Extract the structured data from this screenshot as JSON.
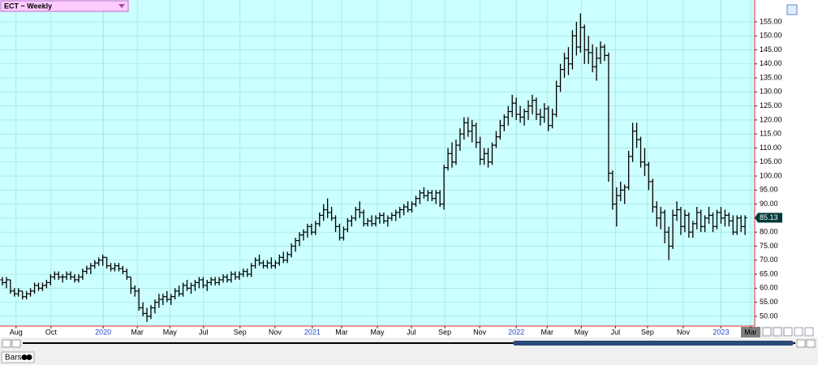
{
  "chart_data": {
    "type": "ohlc",
    "title": "ECT ~ Weekly",
    "toolbar_label": "Bars",
    "color": "#000000",
    "grid": true,
    "last_price": 85.13,
    "xlim": [
      -0.6,
      187.4
    ],
    "ylim": [
      46.5,
      162.2
    ],
    "xticks": [
      {
        "value": 3.4,
        "label": "Aug"
      },
      {
        "value": 12.1,
        "label": "Oct"
      },
      {
        "value": 25.1,
        "label": "2020"
      },
      {
        "value": 33.6,
        "label": "Mar"
      },
      {
        "value": 41.7,
        "label": "May"
      },
      {
        "value": 50.1,
        "label": "Jul"
      },
      {
        "value": 59.2,
        "label": "Sep"
      },
      {
        "value": 67.9,
        "label": "Nov"
      },
      {
        "value": 77.2,
        "label": "2021"
      },
      {
        "value": 84.5,
        "label": "Mar"
      },
      {
        "value": 93.4,
        "label": "May"
      },
      {
        "value": 101.9,
        "label": "Jul"
      },
      {
        "value": 110.2,
        "label": "Sep"
      },
      {
        "value": 118.9,
        "label": "Nov"
      },
      {
        "value": 128,
        "label": "2022"
      },
      {
        "value": 135.7,
        "label": "Mar"
      },
      {
        "value": 144.2,
        "label": "May"
      },
      {
        "value": 152.7,
        "label": "Jul"
      },
      {
        "value": 160.7,
        "label": "Sep"
      },
      {
        "value": 169.6,
        "label": "Nov"
      },
      {
        "value": 179,
        "label": "2023"
      },
      {
        "value": 186.4,
        "label": "Mar"
      }
    ],
    "yticks": [
      {
        "value": 50,
        "label": "50.00"
      },
      {
        "value": 55,
        "label": "55.00"
      },
      {
        "value": 60,
        "label": "60.00"
      },
      {
        "value": 65,
        "label": "65.00"
      },
      {
        "value": 70,
        "label": "70.00"
      },
      {
        "value": 75,
        "label": "75.00"
      },
      {
        "value": 80,
        "label": "80.00"
      },
      {
        "value": 85,
        "label": "85.00"
      },
      {
        "value": 90,
        "label": "90.00"
      },
      {
        "value": 95,
        "label": "95.00"
      },
      {
        "value": 100,
        "label": "100.00"
      },
      {
        "value": 105,
        "label": "105.00"
      },
      {
        "value": 110,
        "label": "110.00"
      },
      {
        "value": 115,
        "label": "115.00"
      },
      {
        "value": 120,
        "label": "120.00"
      },
      {
        "value": 125,
        "label": "125.00"
      },
      {
        "value": 130,
        "label": "130.00"
      },
      {
        "value": 135,
        "label": "135.00"
      },
      {
        "value": 140,
        "label": "140.00"
      },
      {
        "value": 145,
        "label": "145.00"
      },
      {
        "value": 150,
        "label": "150.00"
      },
      {
        "value": 155,
        "label": "155.00"
      }
    ],
    "ohlc": [
      [
        63,
        64,
        61,
        62
      ],
      [
        62,
        64,
        60,
        63
      ],
      [
        63,
        63,
        58,
        59
      ],
      [
        59,
        60,
        57,
        58
      ],
      [
        58,
        60,
        57,
        59
      ],
      [
        59,
        59,
        56,
        57
      ],
      [
        57,
        59,
        56,
        58
      ],
      [
        58,
        60,
        57,
        59
      ],
      [
        59,
        62,
        58,
        61
      ],
      [
        61,
        62,
        59,
        60
      ],
      [
        60,
        62,
        59,
        61
      ],
      [
        61,
        63,
        60,
        62
      ],
      [
        62,
        65,
        61,
        64
      ],
      [
        64,
        66,
        63,
        65
      ],
      [
        65,
        66,
        63,
        64
      ],
      [
        64,
        65,
        62,
        64
      ],
      [
        64,
        66,
        63,
        65
      ],
      [
        65,
        66,
        63,
        64
      ],
      [
        64,
        65,
        62,
        63
      ],
      [
        63,
        65,
        62,
        64
      ],
      [
        64,
        67,
        63,
        66
      ],
      [
        66,
        68,
        65,
        67
      ],
      [
        67,
        69,
        65,
        68
      ],
      [
        68,
        70,
        67,
        69
      ],
      [
        69,
        71,
        68,
        70
      ],
      [
        70,
        72,
        68,
        71
      ],
      [
        71,
        71,
        67,
        68
      ],
      [
        68,
        69,
        66,
        67
      ],
      [
        67,
        69,
        66,
        68
      ],
      [
        68,
        69,
        66,
        67
      ],
      [
        67,
        68,
        65,
        66
      ],
      [
        66,
        67,
        63,
        64
      ],
      [
        64,
        64,
        58,
        60
      ],
      [
        60,
        61,
        57,
        59
      ],
      [
        59,
        60,
        52,
        53
      ],
      [
        53,
        55,
        50,
        51
      ],
      [
        51,
        53,
        48,
        50
      ],
      [
        50,
        54,
        49,
        53
      ],
      [
        53,
        56,
        51,
        55
      ],
      [
        55,
        58,
        53,
        56
      ],
      [
        56,
        58,
        54,
        57
      ],
      [
        57,
        59,
        55,
        56
      ],
      [
        56,
        58,
        54,
        57
      ],
      [
        57,
        60,
        56,
        59
      ],
      [
        59,
        61,
        57,
        58
      ],
      [
        58,
        62,
        57,
        61
      ],
      [
        61,
        63,
        59,
        60
      ],
      [
        60,
        62,
        58,
        61
      ],
      [
        61,
        63,
        59,
        62
      ],
      [
        62,
        64,
        60,
        63
      ],
      [
        63,
        64,
        60,
        61
      ],
      [
        61,
        63,
        59,
        62
      ],
      [
        62,
        64,
        61,
        63
      ],
      [
        63,
        64,
        61,
        62
      ],
      [
        62,
        64,
        61,
        63
      ],
      [
        63,
        65,
        62,
        64
      ],
      [
        64,
        65,
        62,
        63
      ],
      [
        63,
        66,
        62,
        65
      ],
      [
        65,
        66,
        63,
        64
      ],
      [
        64,
        66,
        63,
        65
      ],
      [
        65,
        67,
        64,
        66
      ],
      [
        66,
        67,
        64,
        65
      ],
      [
        65,
        69,
        64,
        68
      ],
      [
        68,
        71,
        67,
        70
      ],
      [
        70,
        72,
        68,
        69
      ],
      [
        69,
        70,
        67,
        68
      ],
      [
        68,
        70,
        67,
        69
      ],
      [
        69,
        71,
        67,
        68
      ],
      [
        68,
        70,
        67,
        69
      ],
      [
        69,
        72,
        68,
        71
      ],
      [
        71,
        73,
        69,
        70
      ],
      [
        70,
        73,
        69,
        72
      ],
      [
        72,
        76,
        71,
        75
      ],
      [
        75,
        78,
        73,
        77
      ],
      [
        77,
        80,
        75,
        79
      ],
      [
        79,
        81,
        77,
        80
      ],
      [
        80,
        83,
        78,
        82
      ],
      [
        82,
        83,
        79,
        80
      ],
      [
        80,
        84,
        79,
        83
      ],
      [
        83,
        87,
        82,
        86
      ],
      [
        86,
        90,
        84,
        88
      ],
      [
        88,
        92,
        85,
        87
      ],
      [
        87,
        89,
        84,
        85
      ],
      [
        85,
        86,
        80,
        82
      ],
      [
        82,
        83,
        77,
        78
      ],
      [
        78,
        82,
        77,
        81
      ],
      [
        81,
        85,
        80,
        84
      ],
      [
        84,
        86,
        82,
        85
      ],
      [
        85,
        89,
        84,
        88
      ],
      [
        88,
        91,
        85,
        87
      ],
      [
        87,
        88,
        82,
        83
      ],
      [
        83,
        85,
        82,
        84
      ],
      [
        84,
        86,
        82,
        83
      ],
      [
        83,
        86,
        82,
        85
      ],
      [
        85,
        87,
        83,
        86
      ],
      [
        86,
        87,
        83,
        84
      ],
      [
        84,
        86,
        82,
        85
      ],
      [
        85,
        87,
        84,
        86
      ],
      [
        86,
        88,
        84,
        87
      ],
      [
        87,
        89,
        85,
        88
      ],
      [
        88,
        90,
        86,
        89
      ],
      [
        89,
        91,
        87,
        88
      ],
      [
        88,
        91,
        87,
        90
      ],
      [
        90,
        93,
        89,
        92
      ],
      [
        92,
        95,
        90,
        94
      ],
      [
        94,
        96,
        92,
        93
      ],
      [
        93,
        95,
        91,
        94
      ],
      [
        94,
        95,
        91,
        92
      ],
      [
        92,
        95,
        90,
        94
      ],
      [
        94,
        95,
        89,
        90
      ],
      [
        90,
        104,
        88,
        103
      ],
      [
        103,
        110,
        102,
        108
      ],
      [
        108,
        112,
        103,
        105
      ],
      [
        105,
        113,
        104,
        111
      ],
      [
        111,
        117,
        109,
        115
      ],
      [
        115,
        121,
        113,
        119
      ],
      [
        119,
        121,
        114,
        116
      ],
      [
        116,
        120,
        112,
        118
      ],
      [
        118,
        119,
        110,
        112
      ],
      [
        112,
        114,
        104,
        106
      ],
      [
        106,
        110,
        104,
        108
      ],
      [
        108,
        110,
        103,
        105
      ],
      [
        105,
        112,
        104,
        111
      ],
      [
        111,
        116,
        110,
        114
      ],
      [
        114,
        120,
        113,
        118
      ],
      [
        118,
        122,
        116,
        121
      ],
      [
        121,
        125,
        118,
        123
      ],
      [
        123,
        129,
        121,
        126
      ],
      [
        126,
        128,
        120,
        122
      ],
      [
        122,
        125,
        119,
        121
      ],
      [
        121,
        124,
        118,
        123
      ],
      [
        123,
        127,
        120,
        125
      ],
      [
        125,
        129,
        122,
        127
      ],
      [
        127,
        128,
        120,
        122
      ],
      [
        122,
        124,
        118,
        121
      ],
      [
        121,
        126,
        119,
        124
      ],
      [
        124,
        125,
        116,
        118
      ],
      [
        118,
        124,
        117,
        122
      ],
      [
        122,
        134,
        121,
        132
      ],
      [
        132,
        140,
        130,
        138
      ],
      [
        138,
        144,
        135,
        142
      ],
      [
        142,
        146,
        136,
        140
      ],
      [
        140,
        152,
        138,
        150
      ],
      [
        150,
        155,
        143,
        146
      ],
      [
        146,
        158,
        144,
        153
      ],
      [
        153,
        154,
        140,
        145
      ],
      [
        145,
        150,
        140,
        144
      ],
      [
        144,
        147,
        137,
        139
      ],
      [
        139,
        146,
        134,
        142
      ],
      [
        142,
        148,
        140,
        146
      ],
      [
        146,
        147,
        141,
        143
      ],
      [
        143,
        144,
        98,
        101
      ],
      [
        101,
        102,
        88,
        90
      ],
      [
        90,
        96,
        82,
        93
      ],
      [
        93,
        98,
        91,
        95
      ],
      [
        95,
        97,
        90,
        96
      ],
      [
        96,
        109,
        95,
        107
      ],
      [
        107,
        119,
        105,
        116
      ],
      [
        116,
        119,
        110,
        113
      ],
      [
        113,
        114,
        103,
        105
      ],
      [
        105,
        110,
        100,
        104
      ],
      [
        104,
        105,
        95,
        98
      ],
      [
        98,
        99,
        87,
        89
      ],
      [
        89,
        91,
        82,
        85
      ],
      [
        85,
        89,
        81,
        87
      ],
      [
        87,
        88,
        76,
        80
      ],
      [
        80,
        82,
        70,
        75
      ],
      [
        75,
        88,
        74,
        86
      ],
      [
        86,
        91,
        84,
        88
      ],
      [
        88,
        89,
        79,
        82
      ],
      [
        82,
        88,
        80,
        86
      ],
      [
        86,
        87,
        78,
        80
      ],
      [
        80,
        84,
        78,
        83
      ],
      [
        83,
        89,
        81,
        87
      ],
      [
        87,
        88,
        80,
        82
      ],
      [
        82,
        86,
        80,
        85
      ],
      [
        85,
        89,
        83,
        86
      ],
      [
        86,
        87,
        80,
        82
      ],
      [
        82,
        88,
        81,
        87
      ],
      [
        87,
        89,
        83,
        85
      ],
      [
        85,
        88,
        82,
        86
      ],
      [
        86,
        87,
        82,
        84
      ],
      [
        84,
        86,
        79,
        80
      ],
      [
        80,
        86,
        79,
        85
      ],
      [
        85,
        86,
        80,
        82
      ],
      [
        82,
        86,
        79,
        85.13
      ]
    ]
  }
}
